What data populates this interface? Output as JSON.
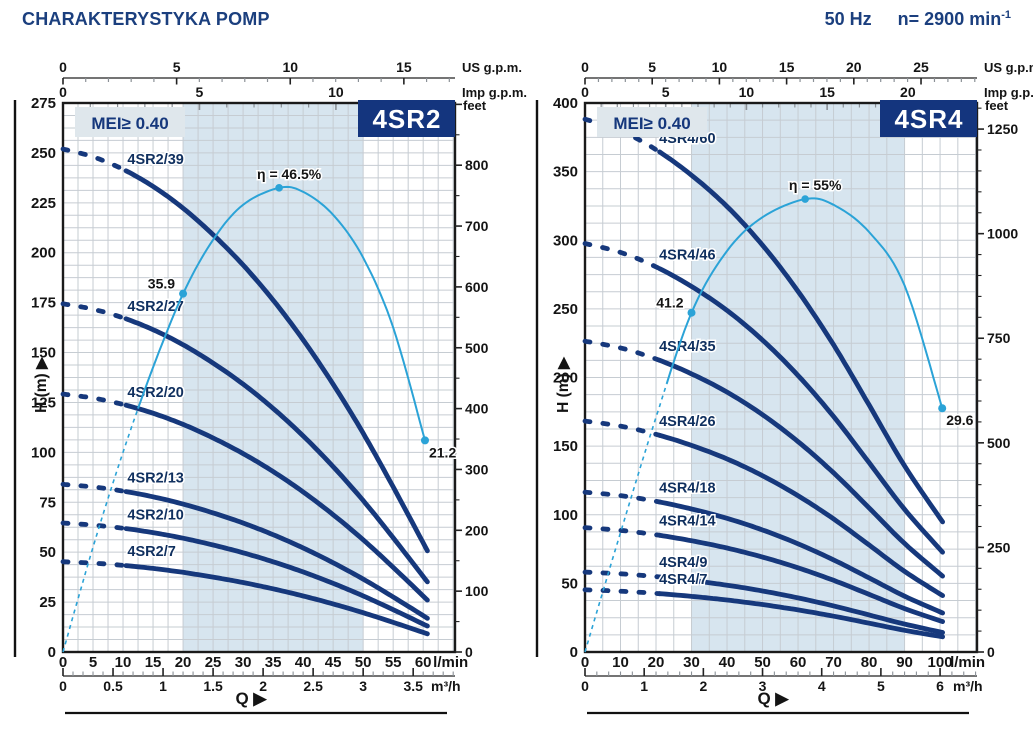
{
  "header": {
    "title": "CHARAKTERYSTYKA POMP",
    "frequency": "50 Hz",
    "speed_value": "n= 2900 min",
    "speed_sup": "-1"
  },
  "colors": {
    "navy_text": "#1b3f7e",
    "curve": "#16387c",
    "curve_label": "#10305f",
    "efficiency": "#2ba3d7",
    "band": "#d7e5ef",
    "grid": "#c6ccd2",
    "border": "#1a1a1a",
    "minor_tick": "#8b9197",
    "mei_bg": "#dfe7ec",
    "model_bg": "#14357e"
  },
  "chart_data": [
    {
      "type": "line",
      "model": "4SR2",
      "mei_label": "MEI≥ 0.40",
      "x": {
        "unit": "l/min",
        "min": 0,
        "max": 65.3,
        "ticks": [
          "0",
          "5",
          "10",
          "15",
          "20",
          "25",
          "30",
          "35",
          "40",
          "45",
          "50",
          "55",
          "60"
        ]
      },
      "x2_m3h": {
        "unit": "m³/h",
        "ticks": [
          "0",
          "0.5",
          "1",
          "1.5",
          "2",
          "2.5",
          "3",
          "3.5"
        ],
        "lmin_per_unit": 16.6667,
        "minor_step": 0.1
      },
      "x3_usgpm": {
        "unit": "US g.p.m.",
        "ticks": [
          "0",
          "5",
          "10",
          "15"
        ],
        "lmin_per_unit": 3.78541,
        "minor_step": 1
      },
      "x4_impgpm": {
        "unit": "Imp g.p.m.",
        "ticks": [
          "0",
          "5",
          "10"
        ],
        "lmin_per_unit": 4.54609,
        "minor_step": 1
      },
      "y": {
        "label": "H (m)",
        "unit": "m",
        "min": 0,
        "max": 275,
        "ticks": [
          "0",
          "25",
          "50",
          "75",
          "100",
          "125",
          "150",
          "175",
          "200",
          "225",
          "250",
          "275"
        ]
      },
      "y2_feet": {
        "unit": "feet",
        "ticks": [
          "0",
          "100",
          "200",
          "300",
          "400",
          "500",
          "600",
          "700",
          "800"
        ],
        "m_per_unit": 0.3048,
        "minor_step": 50
      },
      "q_label": "Q",
      "arrow": "▶",
      "grid": {
        "x": 2.5,
        "y": 6.25
      },
      "band": [
        20,
        50
      ],
      "dash_until_q": 10.4,
      "pumps": [
        {
          "name": "4SR2/39",
          "stages": 39
        },
        {
          "name": "4SR2/27",
          "stages": 27
        },
        {
          "name": "4SR2/20",
          "stages": 20
        },
        {
          "name": "4SR2/13",
          "stages": 13
        },
        {
          "name": "4SR2/10",
          "stages": 10
        },
        {
          "name": "4SR2/7",
          "stages": 7
        }
      ],
      "stage_head": {
        "q": [
          0,
          5,
          10,
          15,
          20,
          25,
          30,
          35,
          40,
          45,
          50,
          55,
          60.7
        ],
        "h": [
          6.46,
          6.36,
          6.2,
          5.98,
          5.7,
          5.36,
          4.97,
          4.52,
          4.01,
          3.44,
          2.81,
          2.12,
          1.3
        ]
      },
      "efficiency": {
        "q": [
          0,
          5,
          10,
          15,
          20,
          25,
          30,
          36,
          40,
          45,
          50,
          55,
          60.3
        ],
        "eta_pct": [
          0,
          10.5,
          20,
          28.5,
          35.9,
          41.3,
          44.8,
          46.5,
          46.1,
          43.8,
          39.5,
          32.5,
          21.2
        ],
        "m_per_pct": 5,
        "dash_until_q": 12.5,
        "peak": {
          "q": 36,
          "eta_pct": 46.5,
          "label": "η = 46.5%",
          "pos": "above"
        },
        "range_points": [
          {
            "q": 20,
            "eta_pct": 35.9,
            "label": "35.9",
            "pos": "left"
          },
          {
            "q": 60.3,
            "eta_pct": 21.2,
            "label": "21.2",
            "pos": "below-right"
          }
        ]
      }
    },
    {
      "type": "line",
      "model": "4SR4",
      "mei_label": "MEI≥ 0.40",
      "x": {
        "unit": "l/min",
        "min": 0,
        "max": 110.4,
        "ticks": [
          "0",
          "10",
          "20",
          "30",
          "40",
          "50",
          "60",
          "70",
          "80",
          "90",
          "100"
        ]
      },
      "x2_m3h": {
        "unit": "m³/h",
        "ticks": [
          "0",
          "1",
          "2",
          "3",
          "4",
          "5",
          "6"
        ],
        "lmin_per_unit": 16.6667,
        "minor_step": 0.2
      },
      "x3_usgpm": {
        "unit": "US g.p.m.",
        "ticks": [
          "0",
          "5",
          "10",
          "15",
          "20",
          "25"
        ],
        "lmin_per_unit": 3.78541,
        "minor_step": 1
      },
      "x4_impgpm": {
        "unit": "Imp g.p.m.",
        "ticks": [
          "0",
          "5",
          "10",
          "15",
          "20"
        ],
        "lmin_per_unit": 4.54609,
        "minor_step": 1
      },
      "y": {
        "label": "H (m)",
        "unit": "m",
        "min": 0,
        "max": 400,
        "ticks": [
          "0",
          "50",
          "100",
          "150",
          "200",
          "250",
          "300",
          "350",
          "400"
        ]
      },
      "y2_feet": {
        "unit": "feet",
        "ticks": [
          "0",
          "250",
          "500",
          "750",
          "1000",
          "1250"
        ],
        "m_per_unit": 0.3048,
        "minor_step": 50
      },
      "q_label": "Q",
      "arrow": "▶",
      "grid": {
        "x": 5,
        "y": 12.5
      },
      "band": [
        30,
        90
      ],
      "dash_until_q": 20.3,
      "pumps": [
        {
          "name": "4SR4/60",
          "stages": 60
        },
        {
          "name": "4SR4/46",
          "stages": 46
        },
        {
          "name": "4SR4/35",
          "stages": 35
        },
        {
          "name": "4SR4/26",
          "stages": 26
        },
        {
          "name": "4SR4/18",
          "stages": 18
        },
        {
          "name": "4SR4/14",
          "stages": 14
        },
        {
          "name": "4SR4/9",
          "stages": 9
        },
        {
          "name": "4SR4/7",
          "stages": 7
        }
      ],
      "stage_head": {
        "q": [
          0,
          10,
          20,
          30,
          40,
          50,
          60,
          70,
          80,
          90,
          100.7
        ],
        "h": [
          6.47,
          6.33,
          6.1,
          5.79,
          5.41,
          4.94,
          4.38,
          3.73,
          3.0,
          2.26,
          1.58
        ]
      },
      "efficiency": {
        "q": [
          0,
          10,
          20,
          30,
          40,
          50,
          62,
          70,
          80,
          90,
          100.6
        ],
        "eta_pct": [
          0,
          14.5,
          28.5,
          41.2,
          48.7,
          52.8,
          55,
          54.3,
          51,
          44.5,
          29.6
        ],
        "m_per_pct": 6,
        "dash_until_q": 23,
        "peak": {
          "q": 62,
          "eta_pct": 55,
          "label": "η = 55%",
          "pos": "above"
        },
        "range_points": [
          {
            "q": 30,
            "eta_pct": 41.2,
            "label": "41.2",
            "pos": "left"
          },
          {
            "q": 100.6,
            "eta_pct": 29.6,
            "label": "29.6",
            "pos": "below-right"
          }
        ]
      }
    }
  ]
}
